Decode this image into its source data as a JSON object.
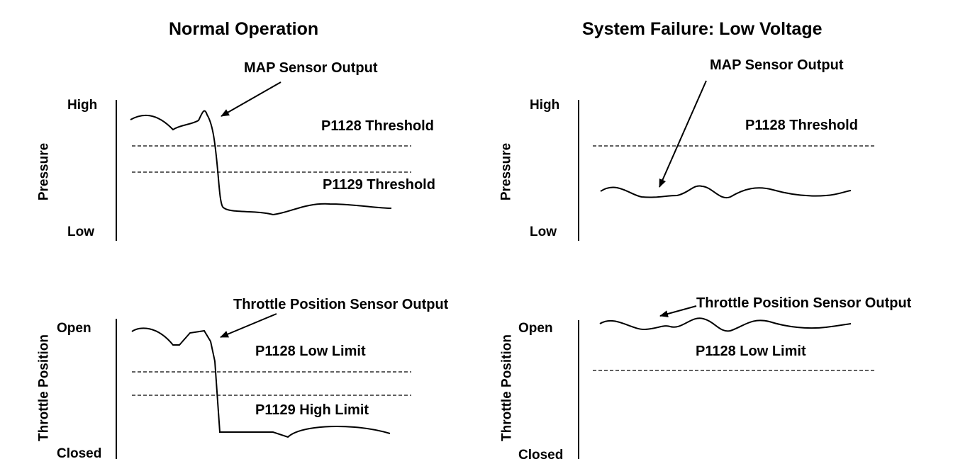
{
  "panels": {
    "normal": {
      "title": "Normal Operation",
      "pressure": {
        "y_axis_label": "Pressure",
        "tick_high": "High",
        "tick_low": "Low",
        "signal_label": "MAP Sensor Output",
        "threshold_upper": "P1128 Threshold",
        "threshold_lower": "P1129 Threshold"
      },
      "throttle": {
        "y_axis_label": "Throttle Position",
        "tick_open": "Open",
        "tick_closed": "Closed",
        "signal_label": "Throttle Position Sensor Output",
        "limit_upper": "P1128 Low Limit",
        "limit_lower": "P1129 High Limit"
      }
    },
    "failure": {
      "title": "System Failure: Low Voltage",
      "pressure": {
        "y_axis_label": "Pressure",
        "tick_high": "High",
        "tick_low": "Low",
        "signal_label": "MAP Sensor Output",
        "threshold_upper": "P1128 Threshold"
      },
      "throttle": {
        "y_axis_label": "Throttle Position",
        "tick_open": "Open",
        "tick_closed": "Closed",
        "signal_label": "Throttle Position Sensor Output",
        "limit_upper": "P1128 Low Limit"
      }
    }
  }
}
